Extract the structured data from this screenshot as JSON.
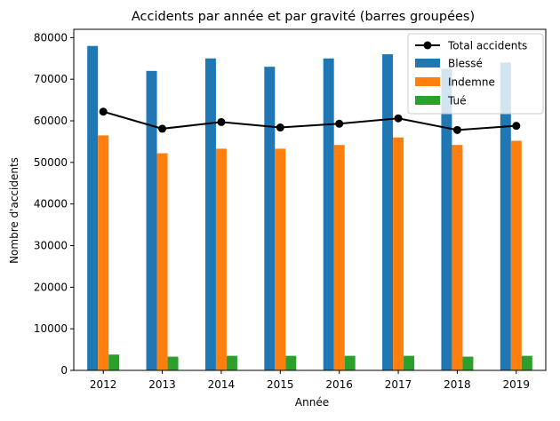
{
  "chart_data": {
    "type": "bar",
    "title": "Accidents par année et par gravité (barres groupées)",
    "xlabel": "Année",
    "ylabel": "Nombre d'accidents",
    "ylim": [
      0,
      82000
    ],
    "yticks": [
      0,
      10000,
      20000,
      30000,
      40000,
      50000,
      60000,
      70000,
      80000
    ],
    "categories": [
      "2012",
      "2013",
      "2014",
      "2015",
      "2016",
      "2017",
      "2018",
      "2019"
    ],
    "series": [
      {
        "name": "Blessé",
        "color": "#1f77b4",
        "values": [
          78000,
          72000,
          75000,
          73000,
          75000,
          76000,
          72500,
          74000
        ]
      },
      {
        "name": "Indemne",
        "color": "#ff7f0e",
        "values": [
          56500,
          52200,
          53300,
          53300,
          54200,
          56000,
          54200,
          55200
        ]
      },
      {
        "name": "Tué",
        "color": "#2ca02c",
        "values": [
          3800,
          3300,
          3500,
          3500,
          3500,
          3500,
          3300,
          3500
        ]
      }
    ],
    "line": {
      "name": "Total accidents",
      "color": "#000000",
      "values": [
        62200,
        58100,
        59700,
        58400,
        59300,
        60600,
        57800,
        58800
      ]
    },
    "legend_position": "top-right",
    "grid": false
  }
}
